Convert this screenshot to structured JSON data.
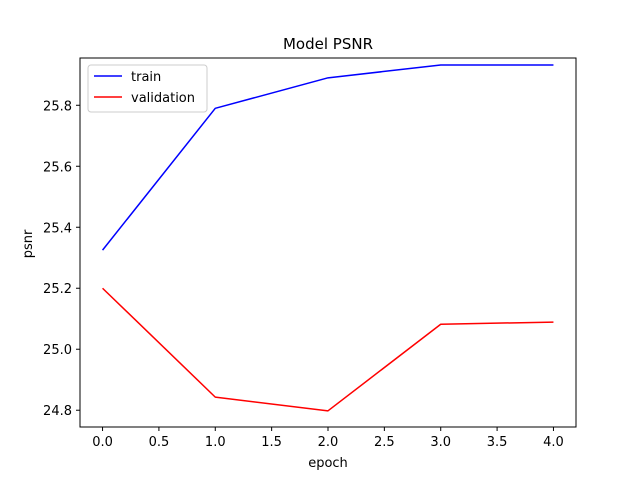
{
  "chart_data": {
    "type": "line",
    "title": "Model PSNR",
    "xlabel": "epoch",
    "ylabel": "psnr",
    "x": [
      0,
      1,
      2,
      3,
      4
    ],
    "xlim": [
      -0.2,
      4.2
    ],
    "ylim": [
      24.745,
      25.955
    ],
    "xticks": [
      0.0,
      0.5,
      1.0,
      1.5,
      2.0,
      2.5,
      3.0,
      3.5,
      4.0
    ],
    "xtick_labels": [
      "0.0",
      "0.5",
      "1.0",
      "1.5",
      "2.0",
      "2.5",
      "3.0",
      "3.5",
      "4.0"
    ],
    "yticks": [
      24.8,
      25.0,
      25.2,
      25.4,
      25.6,
      25.8
    ],
    "ytick_labels": [
      "24.8",
      "25.0",
      "25.2",
      "25.4",
      "25.6",
      "25.8"
    ],
    "grid": false,
    "legend": "top-left",
    "series": [
      {
        "name": "train",
        "color": "#0000ff",
        "values": [
          25.325,
          25.79,
          25.89,
          25.932,
          25.932
        ]
      },
      {
        "name": "validation",
        "color": "#ff0000",
        "values": [
          25.2,
          24.843,
          24.798,
          25.082,
          25.089
        ]
      }
    ]
  }
}
